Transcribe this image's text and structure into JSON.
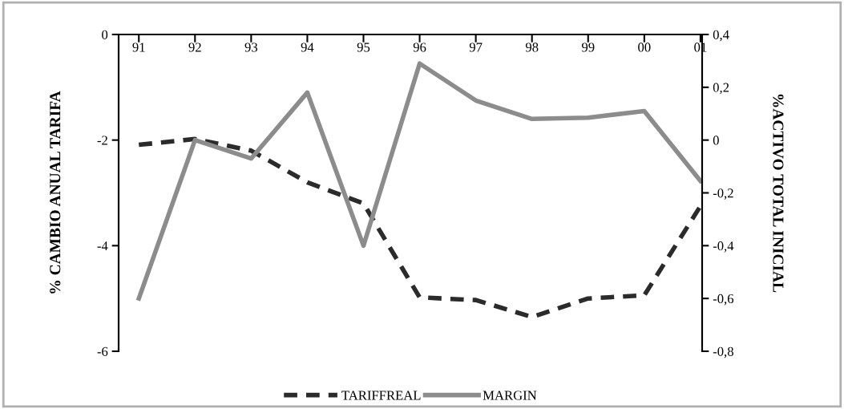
{
  "chart_data": {
    "type": "line",
    "categories": [
      "91",
      "92",
      "93",
      "94",
      "95",
      "96",
      "97",
      "98",
      "99",
      "00",
      "01"
    ],
    "ylabel": "% CAMBIO ANUAL TARIFA",
    "y2label": "%ACTIVO TOTAL INICIAL",
    "series": [
      {
        "name": "TARIFFREAL",
        "color": "#2b2b2b",
        "line_style": "dashed",
        "values": [
          -2.09,
          -1.98,
          -2.2,
          -2.8,
          -3.2,
          -4.98,
          -5.03,
          -5.35,
          -5.0,
          -4.94,
          -3.25
        ]
      },
      {
        "name": "MARGIN",
        "color": "#8c8c8c",
        "line_style": "solid",
        "axis": "y2",
        "values": [
          -0.6,
          0.0,
          -0.07,
          0.18,
          -0.4,
          0.29,
          0.15,
          0.08,
          0.085,
          0.11,
          -0.155
        ]
      }
    ],
    "ylim": [
      -6,
      0
    ],
    "yticks": [
      0,
      -2,
      -4,
      -6
    ],
    "y2lim": [
      -0.8,
      0.4
    ],
    "y2ticks": [
      {
        "value": 0.4,
        "label": "0,4"
      },
      {
        "value": 0.2,
        "label": "0,2"
      },
      0,
      {
        "value": -0.2,
        "label": "-0,2"
      },
      {
        "value": -0.4,
        "label": "-0,4"
      },
      {
        "value": -0.6,
        "label": "-0,6"
      },
      {
        "value": -0.8,
        "label": "-0,8"
      }
    ],
    "legend": "bottom",
    "grid": false,
    "marker": "none"
  }
}
